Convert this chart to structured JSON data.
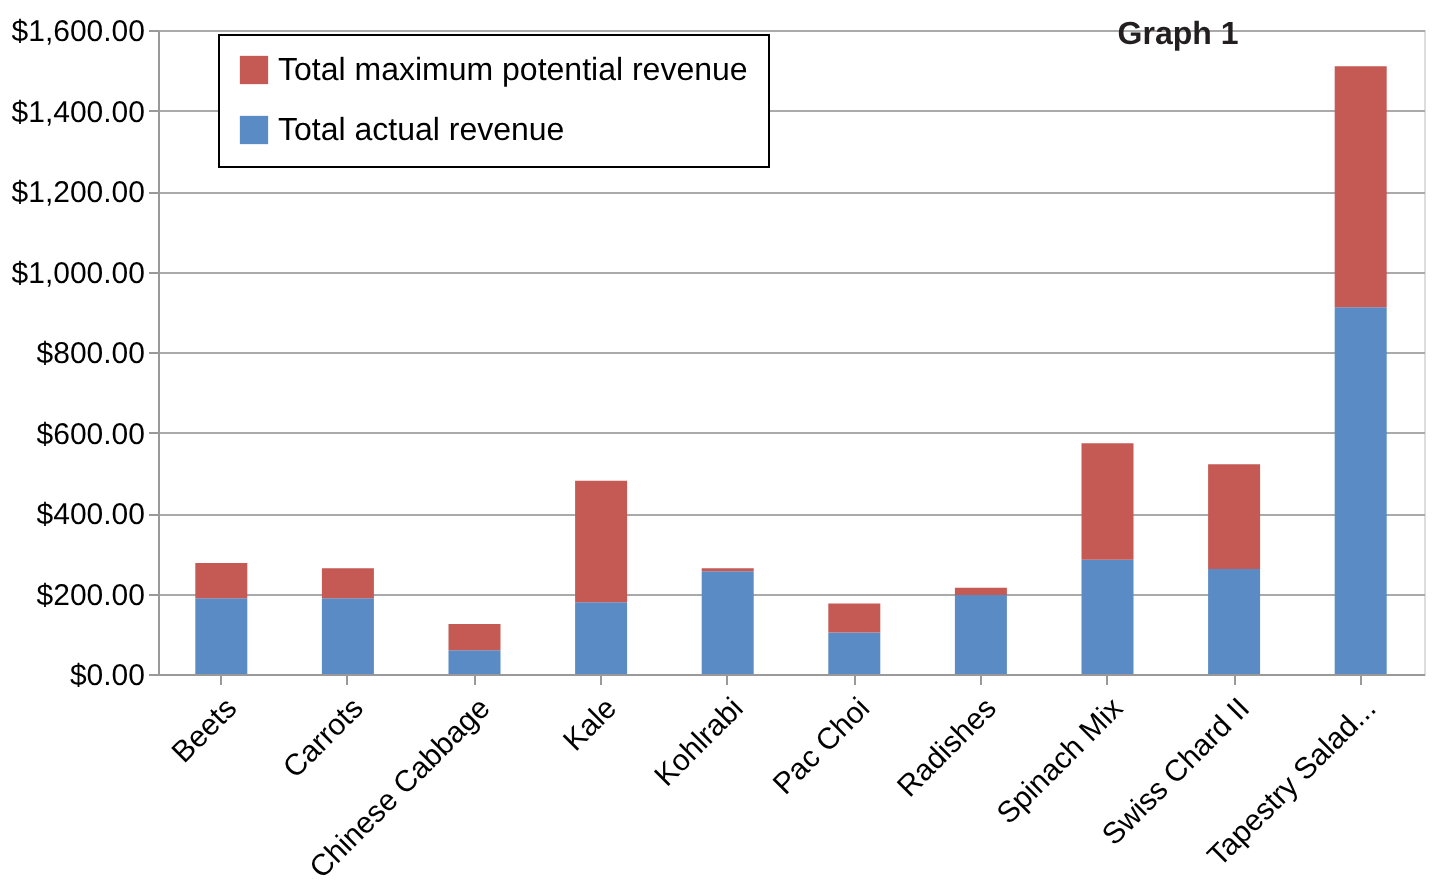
{
  "chart_data": {
    "type": "bar",
    "stacked": true,
    "categories": [
      "Beets",
      "Carrots",
      "Chinese Cabbage",
      "Kale",
      "Kohlrabi",
      "Pac Choi",
      "Radishes",
      "Spinach Mix",
      "Swiss Chard II",
      "Tapestry Salad..."
    ],
    "series": [
      {
        "name": "Total actual revenue",
        "color": "#5b8bc5",
        "values": [
          188,
          188,
          59,
          178,
          255,
          103,
          196,
          284,
          261,
          911
        ]
      },
      {
        "name": "Total maximum potential revenue",
        "color": "#c55a55",
        "values": [
          88,
          75,
          65,
          302,
          8,
          72,
          18,
          289,
          260,
          599
        ]
      }
    ],
    "ylim": [
      0,
      1600
    ],
    "yticks": [
      {
        "value": 0,
        "label": "$0.00"
      },
      {
        "value": 200,
        "label": "$200.00"
      },
      {
        "value": 400,
        "label": "$400.00"
      },
      {
        "value": 600,
        "label": "$600.00"
      },
      {
        "value": 800,
        "label": "$800.00"
      },
      {
        "value": 1000,
        "label": "$1,000.00"
      },
      {
        "value": 1200,
        "label": "$1,200.00"
      },
      {
        "value": 1400,
        "label": "$1,400.00"
      },
      {
        "value": 1600,
        "label": "$1,600.00"
      }
    ],
    "grid": "y",
    "legend": "top left",
    "annotations": [
      "Graph 1"
    ]
  }
}
